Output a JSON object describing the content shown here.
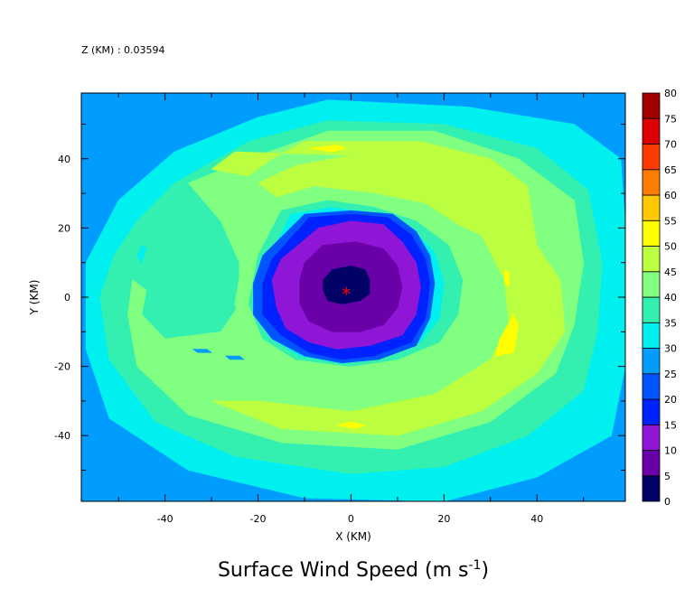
{
  "header": {
    "z_label": "Z (KM) : 0.03594"
  },
  "chart_data": {
    "type": "heatmap",
    "title": "Surface Wind Speed (m s",
    "title_exponent": "-1",
    "title_close": ")",
    "xlabel": "X (KM)",
    "ylabel": "Y (KM)",
    "xlim": [
      -58,
      59
    ],
    "ylim": [
      -59,
      59
    ],
    "x_ticks": [
      -40,
      -20,
      0,
      20,
      40
    ],
    "y_ticks": [
      40,
      20,
      0,
      -20,
      -40
    ],
    "colorbar": {
      "levels": [
        0,
        5,
        10,
        15,
        20,
        25,
        30,
        35,
        40,
        45,
        50,
        55,
        60,
        65,
        70,
        75,
        80
      ],
      "colors": [
        "#000066",
        "#6a00a8",
        "#8f16d6",
        "#0022ff",
        "#0055ff",
        "#009dff",
        "#00f0f0",
        "#33f0b0",
        "#80ff80",
        "#bbff40",
        "#ffff00",
        "#ffc800",
        "#ff7c00",
        "#ff3c00",
        "#dd0000",
        "#a00000"
      ]
    },
    "center_marker": {
      "x": -1,
      "y": 1,
      "symbol": "*",
      "color": "#ff0000"
    },
    "contours": [
      {
        "level": 20,
        "color": "#0055ff",
        "points": [
          [
            -58,
            59
          ],
          [
            -45,
            59
          ],
          [
            -52,
            52
          ],
          [
            -58,
            42
          ]
        ]
      },
      {
        "level": 25,
        "color": "#009dff",
        "points": [
          [
            -58,
            59
          ],
          [
            59,
            59
          ],
          [
            59,
            -59
          ],
          [
            -58,
            -59
          ]
        ]
      },
      {
        "level": 30,
        "color": "#00f0f0",
        "points": [
          [
            -5,
            57
          ],
          [
            25,
            55
          ],
          [
            48,
            50
          ],
          [
            58,
            40
          ],
          [
            59,
            20
          ],
          [
            59,
            -20
          ],
          [
            56,
            -40
          ],
          [
            40,
            -52
          ],
          [
            20,
            -59
          ],
          [
            -10,
            -58
          ],
          [
            -35,
            -50
          ],
          [
            -52,
            -35
          ],
          [
            -57,
            -15
          ],
          [
            -57,
            10
          ],
          [
            -50,
            28
          ],
          [
            -38,
            42
          ],
          [
            -20,
            52
          ]
        ]
      },
      {
        "level": 35,
        "color": "#33f0b0",
        "points": [
          [
            -5,
            51
          ],
          [
            20,
            50
          ],
          [
            40,
            43
          ],
          [
            51,
            31
          ],
          [
            54,
            10
          ],
          [
            53,
            -10
          ],
          [
            50,
            -27
          ],
          [
            38,
            -40
          ],
          [
            20,
            -49
          ],
          [
            0,
            -51
          ],
          [
            -25,
            -46
          ],
          [
            -42,
            -36
          ],
          [
            -52,
            -18
          ],
          [
            -54,
            0
          ],
          [
            -51,
            12
          ],
          [
            -46,
            22
          ],
          [
            -38,
            33
          ],
          [
            -22,
            45
          ]
        ]
      },
      {
        "level": 40,
        "color": "#80ff80",
        "points": [
          [
            -5,
            48
          ],
          [
            18,
            48
          ],
          [
            36,
            40
          ],
          [
            48,
            28
          ],
          [
            50,
            10
          ],
          [
            48,
            -8
          ],
          [
            44,
            -22
          ],
          [
            30,
            -36
          ],
          [
            10,
            -44
          ],
          [
            -15,
            -42
          ],
          [
            -35,
            -34
          ],
          [
            -46,
            -20
          ],
          [
            -48,
            -5
          ],
          [
            -47,
            5
          ],
          [
            -44,
            2
          ],
          [
            -45,
            -5
          ],
          [
            -40,
            -12
          ],
          [
            -28,
            -10
          ],
          [
            -24,
            -2
          ],
          [
            -24,
            10
          ],
          [
            -28,
            22
          ],
          [
            -35,
            33
          ],
          [
            -22,
            40
          ]
        ]
      },
      {
        "level": 45,
        "color": "#bbff40",
        "points": [
          [
            -10,
            45
          ],
          [
            15,
            45
          ],
          [
            30,
            40
          ],
          [
            38,
            32
          ],
          [
            40,
            15
          ],
          [
            45,
            5
          ],
          [
            46,
            -10
          ],
          [
            40,
            -22
          ],
          [
            28,
            -33
          ],
          [
            10,
            -40
          ],
          [
            -15,
            -38
          ],
          [
            -30,
            -30
          ],
          [
            -20,
            -30
          ],
          [
            0,
            -33
          ],
          [
            18,
            -28
          ],
          [
            30,
            -18
          ],
          [
            34,
            -8
          ],
          [
            33,
            5
          ],
          [
            28,
            18
          ],
          [
            18,
            24
          ],
          [
            8,
            28
          ],
          [
            -5,
            30
          ],
          [
            -15,
            28
          ],
          [
            -20,
            33
          ],
          [
            -12,
            38
          ],
          [
            0,
            41
          ],
          [
            -25,
            42
          ],
          [
            -30,
            37
          ],
          [
            -22,
            35
          ],
          [
            -17,
            40
          ]
        ]
      },
      {
        "level": 40,
        "color": "#80ff80",
        "points": [
          [
            -18,
            28
          ],
          [
            -8,
            32
          ],
          [
            5,
            30
          ],
          [
            16,
            27
          ],
          [
            24,
            20
          ],
          [
            28,
            8
          ],
          [
            27,
            -5
          ],
          [
            23,
            -14
          ],
          [
            14,
            -20
          ],
          [
            0,
            -23
          ],
          [
            -14,
            -21
          ],
          [
            -22,
            -14
          ],
          [
            -25,
            -2
          ],
          [
            -23,
            14
          ]
        ]
      },
      {
        "level": 35,
        "color": "#33f0b0",
        "points": [
          [
            -15,
            25
          ],
          [
            -5,
            28
          ],
          [
            5,
            26
          ],
          [
            14,
            22
          ],
          [
            21,
            15
          ],
          [
            24,
            5
          ],
          [
            23,
            -5
          ],
          [
            19,
            -13
          ],
          [
            10,
            -18
          ],
          [
            0,
            -20
          ],
          [
            -12,
            -18
          ],
          [
            -19,
            -12
          ],
          [
            -22,
            -2
          ],
          [
            -20,
            12
          ]
        ]
      },
      {
        "level": 30,
        "color": "#00f0f0",
        "points": [
          [
            -13,
            24
          ],
          [
            -4,
            26
          ],
          [
            5,
            24
          ],
          [
            13,
            20
          ],
          [
            18,
            13
          ],
          [
            20,
            4
          ],
          [
            19,
            -6
          ],
          [
            15,
            -13
          ],
          [
            7,
            -17
          ],
          [
            -2,
            -19
          ],
          [
            -11,
            -17
          ],
          [
            -17,
            -12
          ],
          [
            -20,
            -2
          ],
          [
            -18,
            10
          ]
        ]
      },
      {
        "level": 20,
        "color": "#0055ff",
        "points": [
          [
            -10,
            24
          ],
          [
            0,
            25
          ],
          [
            9,
            24
          ],
          [
            14,
            19
          ],
          [
            17,
            12
          ],
          [
            18,
            4
          ],
          [
            17,
            -6
          ],
          [
            14,
            -14
          ],
          [
            6,
            -18
          ],
          [
            -2,
            -19
          ],
          [
            -10,
            -17
          ],
          [
            -17,
            -12
          ],
          [
            -21,
            -5
          ],
          [
            -21,
            4
          ],
          [
            -19,
            12
          ]
        ]
      },
      {
        "level": 15,
        "color": "#0022ff",
        "points": [
          [
            -9,
            23
          ],
          [
            0,
            24
          ],
          [
            8,
            23
          ],
          [
            13,
            18
          ],
          [
            16,
            11
          ],
          [
            17,
            4
          ],
          [
            16,
            -6
          ],
          [
            13,
            -13
          ],
          [
            5,
            -17
          ],
          [
            -2,
            -18
          ],
          [
            -9,
            -16
          ],
          [
            -15,
            -11
          ],
          [
            -19,
            -5
          ],
          [
            -19,
            4
          ],
          [
            -17,
            11
          ]
        ]
      },
      {
        "level": 10,
        "color": "#8f16d6",
        "points": [
          [
            -7,
            20
          ],
          [
            0,
            22
          ],
          [
            7,
            21
          ],
          [
            11,
            16
          ],
          [
            14,
            10
          ],
          [
            15,
            3
          ],
          [
            14,
            -5
          ],
          [
            11,
            -11
          ],
          [
            4,
            -14
          ],
          [
            -3,
            -15
          ],
          [
            -9,
            -13
          ],
          [
            -14,
            -9
          ],
          [
            -16,
            -3
          ],
          [
            -17,
            5
          ],
          [
            -15,
            11
          ]
        ]
      },
      {
        "level": 5,
        "color": "#6a00a8",
        "points": [
          [
            -6,
            15
          ],
          [
            1,
            16
          ],
          [
            7,
            14
          ],
          [
            10,
            9
          ],
          [
            11,
            3
          ],
          [
            10,
            -3
          ],
          [
            7,
            -8
          ],
          [
            2,
            -10
          ],
          [
            -4,
            -10
          ],
          [
            -9,
            -7
          ],
          [
            -11,
            -2
          ],
          [
            -11,
            5
          ],
          [
            -10,
            10
          ]
        ]
      },
      {
        "level": 0,
        "color": "#000066",
        "points": [
          [
            -4,
            8
          ],
          [
            0,
            9
          ],
          [
            3,
            8
          ],
          [
            4,
            5
          ],
          [
            4,
            1
          ],
          [
            2,
            -1
          ],
          [
            -2,
            -2
          ],
          [
            -5,
            -1
          ],
          [
            -6,
            2
          ],
          [
            -6,
            5
          ]
        ]
      },
      {
        "level": 50,
        "color": "#ffff00",
        "points": [
          [
            -9,
            43
          ],
          [
            -3,
            44
          ],
          [
            -1,
            43
          ],
          [
            -4,
            42
          ]
        ]
      },
      {
        "level": 50,
        "color": "#ffff00",
        "points": [
          [
            31,
            -17
          ],
          [
            35,
            -16
          ],
          [
            36,
            -8
          ],
          [
            35,
            -5
          ],
          [
            32,
            -12
          ]
        ]
      },
      {
        "level": 50,
        "color": "#ffff00",
        "points": [
          [
            -3,
            -37
          ],
          [
            1,
            -38
          ],
          [
            3,
            -37
          ],
          [
            0,
            -36
          ]
        ]
      },
      {
        "level": 50,
        "color": "#ffff00",
        "points": [
          [
            33,
            8
          ],
          [
            34,
            7
          ],
          [
            34,
            3
          ],
          [
            33,
            4
          ]
        ]
      },
      {
        "level": 30,
        "color": "#00f0f0",
        "points": [
          [
            -45,
            15
          ],
          [
            -44,
            14
          ],
          [
            -45,
            10
          ],
          [
            -46,
            12
          ]
        ]
      },
      {
        "level": 25,
        "color": "#009dff",
        "points": [
          [
            -34,
            -15
          ],
          [
            -31,
            -15
          ],
          [
            -30,
            -16
          ],
          [
            -33,
            -16
          ]
        ]
      },
      {
        "level": 25,
        "color": "#009dff",
        "points": [
          [
            -27,
            -17
          ],
          [
            -24,
            -17
          ],
          [
            -23,
            -18
          ],
          [
            -26,
            -18
          ]
        ]
      }
    ]
  }
}
